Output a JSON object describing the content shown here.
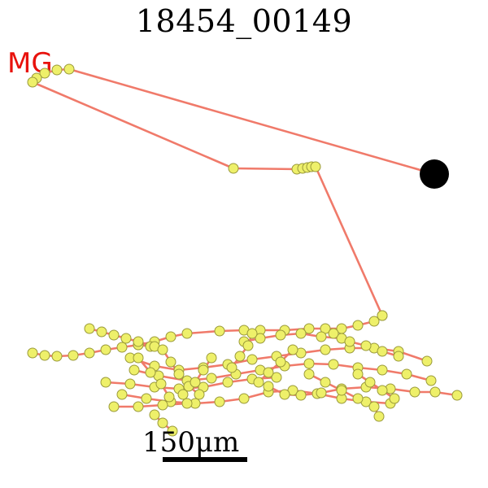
{
  "title": "18454_00149",
  "marker_label": "MG",
  "scale_label": "150μm",
  "colors": {
    "trace": "#f07a6a",
    "node_fill": "#eef06a",
    "node_stroke": "#9a9a3a",
    "soma": "#000000",
    "marker": "#e8120c"
  }
}
